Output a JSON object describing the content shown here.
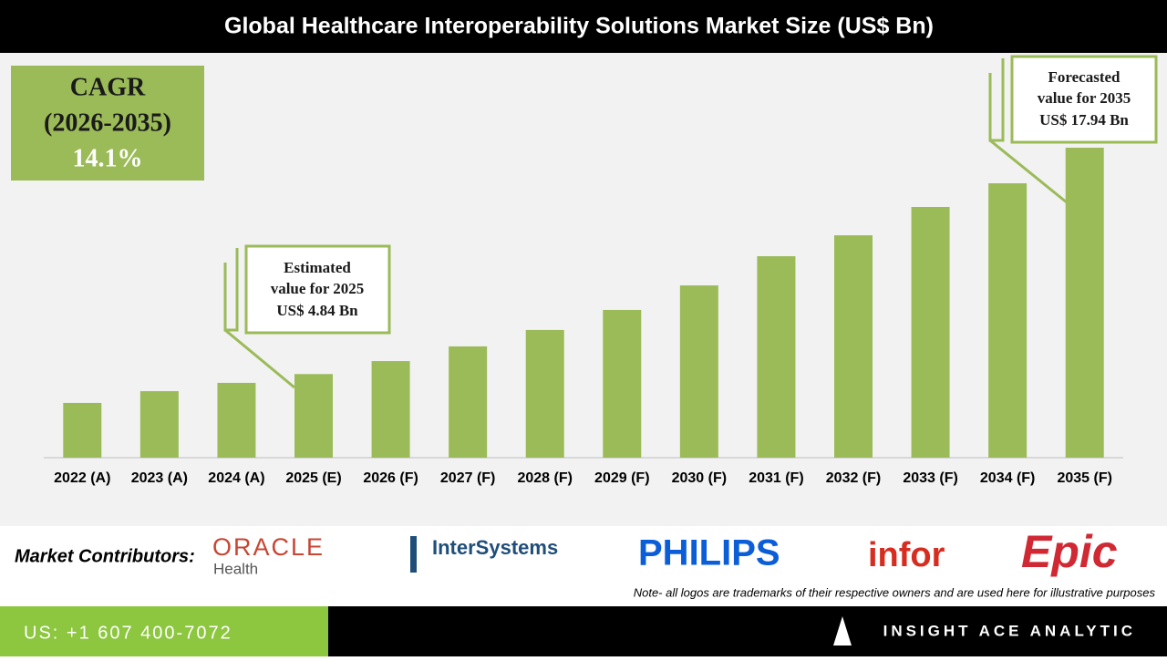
{
  "chart_data": {
    "type": "bar",
    "title": "Global Healthcare Interoperability Solutions Market Size (US$ Bn)",
    "categories": [
      "2022 (A)",
      "2023 (A)",
      "2024 (A)",
      "2025 (E)",
      "2026 (F)",
      "2027 (F)",
      "2028 (F)",
      "2029 (F)",
      "2030 (F)",
      "2031 (F)",
      "2032 (F)",
      "2033 (F)",
      "2034 (F)",
      "2035 (F)"
    ],
    "values": [
      3.17,
      3.85,
      4.33,
      4.84,
      5.59,
      6.44,
      7.39,
      8.55,
      9.97,
      11.66,
      12.87,
      14.51,
      15.88,
      17.94
    ],
    "color": "#9bbb59",
    "cagr": {
      "label": "CAGR",
      "period": "(2026-2035)",
      "value": "14.1%"
    },
    "annotations": [
      {
        "lines": [
          "Estimated",
          "value for 2025",
          "US$ 4.84 Bn"
        ]
      },
      {
        "lines": [
          "Forecasted",
          "value for 2035",
          "US$ 17.94 Bn"
        ]
      }
    ]
  },
  "contributors": {
    "label": "Market Contributors:",
    "logos": [
      "ORACLE",
      "Health",
      "InterSystems",
      "PHILIPS",
      "infor",
      "Epic"
    ],
    "note": "Note- all logos are trademarks of their respective owners and are used here for illustrative purposes"
  },
  "footer": {
    "phone": "US: +1 607 400-7072",
    "brand": "INSIGHT ACE ANALYTIC"
  }
}
